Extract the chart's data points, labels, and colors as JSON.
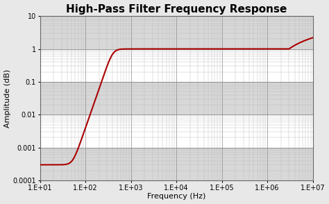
{
  "title": "High-Pass Filter Frequency Response",
  "xlabel": "Frequency (Hz)",
  "ylabel": "Amplitude (dB)",
  "xmin": 10,
  "xmax": 10000000.0,
  "ymin": 0.0001,
  "ymax": 10,
  "line_color": "#aa0000",
  "line_width": 1.5,
  "bg_color": "#e8e8e8",
  "plot_bg": "#ffffff",
  "title_fontsize": 11,
  "label_fontsize": 8,
  "tick_fontsize": 7,
  "cutoff_hz": 400,
  "filter_order": 4,
  "dc_floor": 0.0003,
  "x_ticks": [
    10,
    100,
    1000,
    10000,
    100000,
    1000000,
    10000000
  ],
  "x_labels": [
    "1.E+01",
    "1.E+02",
    "1.E+03",
    "1.E+04",
    "1.E+05",
    "1.E+06",
    "1.E+07"
  ],
  "y_ticks": [
    0.0001,
    0.001,
    0.01,
    0.1,
    1,
    10
  ],
  "y_labels": [
    "0.0001",
    "0.001",
    "0.01",
    "0.1",
    "1",
    "10"
  ],
  "band_colors": [
    "#d8d8d8",
    "#ffffff"
  ],
  "major_grid_color": "#888888",
  "minor_grid_color": "#bbbbbb"
}
